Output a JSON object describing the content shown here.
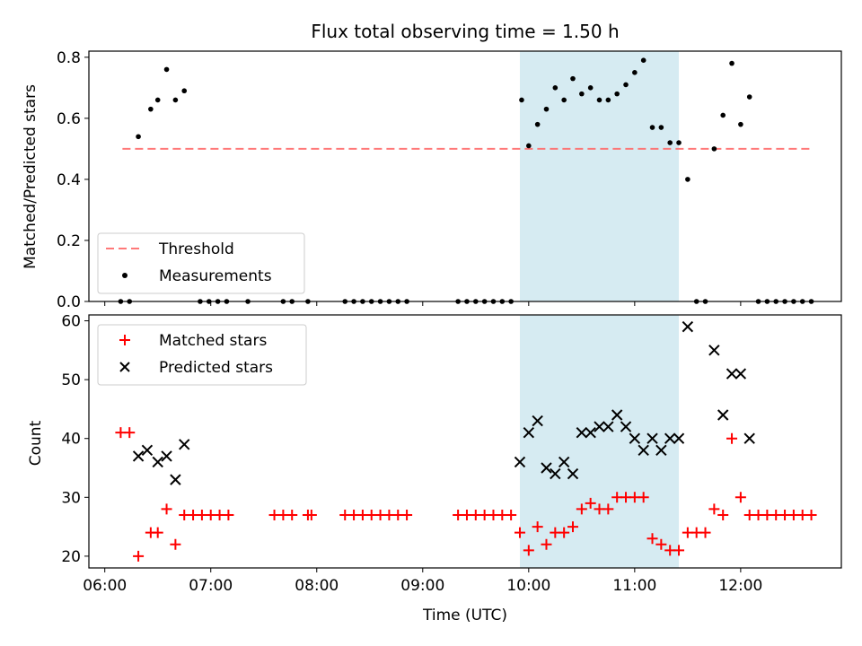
{
  "chart_data": {
    "type": "scatter",
    "title": "Flux total observing time = 1.50 h",
    "xlabel": "Time (UTC)",
    "xlim": [
      "06:00",
      "13:00"
    ],
    "x_ticks": [
      "06:00",
      "07:00",
      "08:00",
      "09:00",
      "10:00",
      "11:00",
      "12:00"
    ],
    "highlight_band": {
      "from": "09:55",
      "to": "11:25",
      "color": "#add8e6"
    },
    "panels": [
      {
        "name": "ratio",
        "ylabel": "Matched/Predicted stars",
        "ylim": [
          0,
          0.82
        ],
        "y_ticks": [
          "0.0",
          "0.2",
          "0.4",
          "0.6",
          "0.8"
        ],
        "threshold": {
          "label": "Threshold",
          "value": 0.5,
          "from": "06:10",
          "to": "12:40",
          "color": "#ff6a6a"
        },
        "series": [
          {
            "name": "Measurements",
            "color": "#000000",
            "marker": "dot",
            "points": [
              [
                "06:09",
                0
              ],
              [
                "06:14",
                0
              ],
              [
                "06:19",
                0.54
              ],
              [
                "06:26",
                0.63
              ],
              [
                "06:30",
                0.66
              ],
              [
                "06:35",
                0.76
              ],
              [
                "06:40",
                0.66
              ],
              [
                "06:45",
                0.69
              ],
              [
                "06:54",
                0
              ],
              [
                "06:59",
                0
              ],
              [
                "07:04",
                0
              ],
              [
                "07:09",
                0
              ],
              [
                "07:21",
                0
              ],
              [
                "07:41",
                0
              ],
              [
                "07:46",
                0
              ],
              [
                "07:55",
                0
              ],
              [
                "08:16",
                0
              ],
              [
                "08:21",
                0
              ],
              [
                "08:26",
                0
              ],
              [
                "08:31",
                0
              ],
              [
                "08:36",
                0
              ],
              [
                "08:41",
                0
              ],
              [
                "08:46",
                0
              ],
              [
                "08:51",
                0
              ],
              [
                "09:20",
                0
              ],
              [
                "09:25",
                0
              ],
              [
                "09:30",
                0
              ],
              [
                "09:35",
                0
              ],
              [
                "09:40",
                0
              ],
              [
                "09:45",
                0
              ],
              [
                "09:50",
                0
              ],
              [
                "09:56",
                0.66
              ],
              [
                "10:00",
                0.51
              ],
              [
                "10:05",
                0.58
              ],
              [
                "10:10",
                0.63
              ],
              [
                "10:15",
                0.7
              ],
              [
                "10:20",
                0.66
              ],
              [
                "10:25",
                0.73
              ],
              [
                "10:30",
                0.68
              ],
              [
                "10:35",
                0.7
              ],
              [
                "10:40",
                0.66
              ],
              [
                "10:45",
                0.66
              ],
              [
                "10:50",
                0.68
              ],
              [
                "10:55",
                0.71
              ],
              [
                "11:00",
                0.75
              ],
              [
                "11:05",
                0.79
              ],
              [
                "11:10",
                0.57
              ],
              [
                "11:15",
                0.57
              ],
              [
                "11:20",
                0.52
              ],
              [
                "11:25",
                0.52
              ],
              [
                "11:30",
                0.4
              ],
              [
                "11:35",
                0
              ],
              [
                "11:40",
                0
              ],
              [
                "11:45",
                0.5
              ],
              [
                "11:50",
                0.61
              ],
              [
                "11:55",
                0.78
              ],
              [
                "12:00",
                0.58
              ],
              [
                "12:05",
                0.67
              ],
              [
                "12:10",
                0
              ],
              [
                "12:15",
                0
              ],
              [
                "12:20",
                0
              ],
              [
                "12:25",
                0
              ],
              [
                "12:30",
                0
              ],
              [
                "12:35",
                0
              ],
              [
                "12:40",
                0
              ]
            ]
          }
        ],
        "legend": [
          "Threshold",
          "Measurements"
        ],
        "legend_position": "lower-left"
      },
      {
        "name": "counts",
        "ylabel": "Count",
        "ylim": [
          18,
          61
        ],
        "y_ticks": [
          "20",
          "30",
          "40",
          "50",
          "60"
        ],
        "series": [
          {
            "name": "Matched stars",
            "color": "#ff0000",
            "marker": "plus",
            "points": [
              [
                "06:09",
                41
              ],
              [
                "06:14",
                41
              ],
              [
                "06:19",
                20
              ],
              [
                "06:26",
                24
              ],
              [
                "06:30",
                24
              ],
              [
                "06:35",
                28
              ],
              [
                "06:40",
                22
              ],
              [
                "06:45",
                27
              ],
              [
                "06:50",
                27
              ],
              [
                "06:55",
                27
              ],
              [
                "07:00",
                27
              ],
              [
                "07:05",
                27
              ],
              [
                "07:10",
                27
              ],
              [
                "07:36",
                27
              ],
              [
                "07:41",
                27
              ],
              [
                "07:46",
                27
              ],
              [
                "07:55",
                27
              ],
              [
                "07:57",
                27
              ],
              [
                "08:16",
                27
              ],
              [
                "08:21",
                27
              ],
              [
                "08:26",
                27
              ],
              [
                "08:31",
                27
              ],
              [
                "08:36",
                27
              ],
              [
                "08:41",
                27
              ],
              [
                "08:46",
                27
              ],
              [
                "08:51",
                27
              ],
              [
                "09:20",
                27
              ],
              [
                "09:25",
                27
              ],
              [
                "09:30",
                27
              ],
              [
                "09:35",
                27
              ],
              [
                "09:40",
                27
              ],
              [
                "09:45",
                27
              ],
              [
                "09:50",
                27
              ],
              [
                "09:55",
                24
              ],
              [
                "10:00",
                21
              ],
              [
                "10:05",
                25
              ],
              [
                "10:10",
                22
              ],
              [
                "10:15",
                24
              ],
              [
                "10:20",
                24
              ],
              [
                "10:25",
                25
              ],
              [
                "10:30",
                28
              ],
              [
                "10:35",
                29
              ],
              [
                "10:40",
                28
              ],
              [
                "10:45",
                28
              ],
              [
                "10:50",
                30
              ],
              [
                "10:55",
                30
              ],
              [
                "11:00",
                30
              ],
              [
                "11:05",
                30
              ],
              [
                "11:10",
                23
              ],
              [
                "11:15",
                22
              ],
              [
                "11:20",
                21
              ],
              [
                "11:25",
                21
              ],
              [
                "11:30",
                24
              ],
              [
                "11:35",
                24
              ],
              [
                "11:40",
                24
              ],
              [
                "11:45",
                28
              ],
              [
                "11:50",
                27
              ],
              [
                "11:55",
                40
              ],
              [
                "12:00",
                30
              ],
              [
                "12:05",
                27
              ],
              [
                "12:10",
                27
              ],
              [
                "12:15",
                27
              ],
              [
                "12:20",
                27
              ],
              [
                "12:25",
                27
              ],
              [
                "12:30",
                27
              ],
              [
                "12:35",
                27
              ],
              [
                "12:40",
                27
              ]
            ]
          },
          {
            "name": "Predicted stars",
            "color": "#000000",
            "marker": "x",
            "points": [
              [
                "06:19",
                37
              ],
              [
                "06:24",
                38
              ],
              [
                "06:30",
                36
              ],
              [
                "06:35",
                37
              ],
              [
                "06:40",
                33
              ],
              [
                "06:45",
                39
              ],
              [
                "09:55",
                36
              ],
              [
                "10:00",
                41
              ],
              [
                "10:05",
                43
              ],
              [
                "10:10",
                35
              ],
              [
                "10:15",
                34
              ],
              [
                "10:20",
                36
              ],
              [
                "10:25",
                34
              ],
              [
                "10:30",
                41
              ],
              [
                "10:35",
                41
              ],
              [
                "10:40",
                42
              ],
              [
                "10:45",
                42
              ],
              [
                "10:50",
                44
              ],
              [
                "10:55",
                42
              ],
              [
                "11:00",
                40
              ],
              [
                "11:05",
                38
              ],
              [
                "11:10",
                40
              ],
              [
                "11:15",
                38
              ],
              [
                "11:20",
                40
              ],
              [
                "11:25",
                40
              ],
              [
                "11:30",
                59
              ],
              [
                "11:45",
                55
              ],
              [
                "11:50",
                44
              ],
              [
                "11:55",
                51
              ],
              [
                "12:00",
                51
              ],
              [
                "12:05",
                40
              ]
            ]
          }
        ],
        "legend": [
          "Matched stars",
          "Predicted stars"
        ],
        "legend_position": "upper-left"
      }
    ]
  }
}
